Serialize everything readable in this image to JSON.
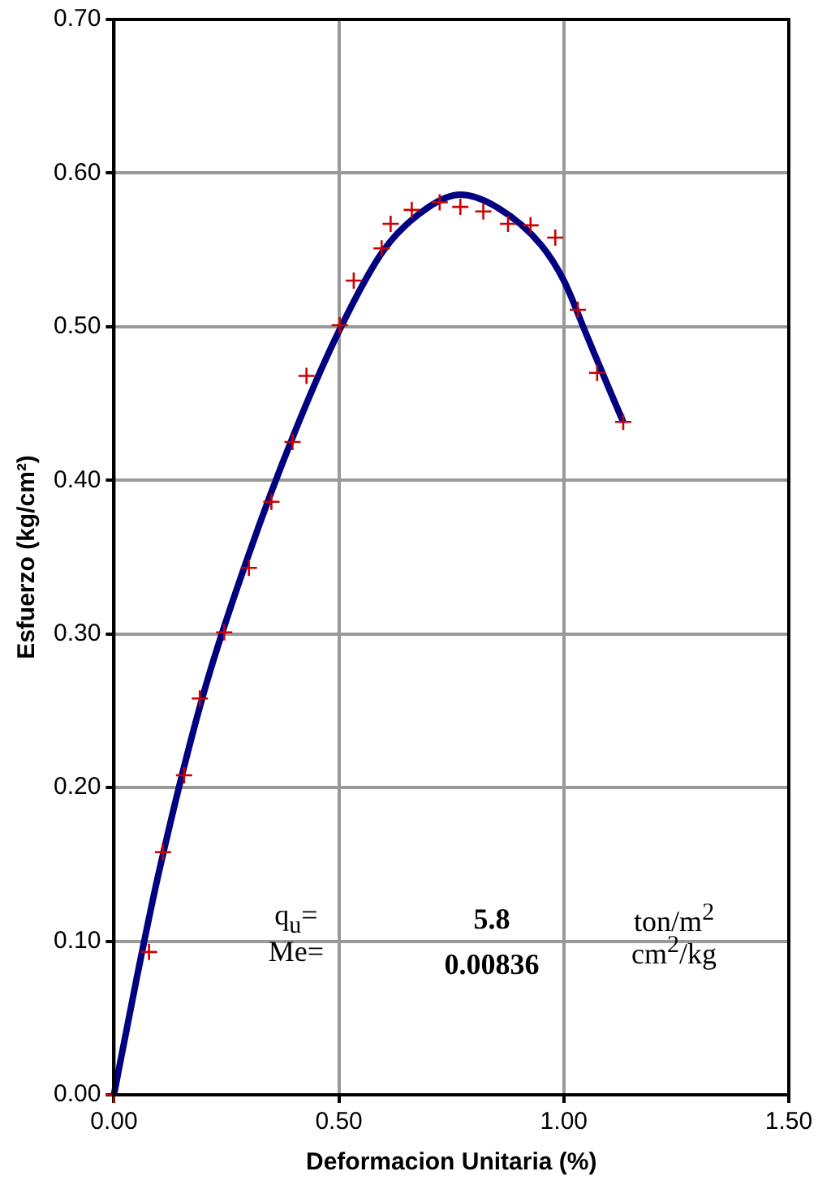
{
  "chart_data": {
    "type": "scatter",
    "xlabel": "Deformacion Unitaria (%)",
    "ylabel": "Esfuerzo (kg/cm²)",
    "xlim": [
      0,
      1.5
    ],
    "xticks": [
      {
        "value": 0,
        "label": "0.00"
      },
      {
        "value": 0.5,
        "label": "0.50"
      },
      {
        "value": 1,
        "label": "1.00"
      },
      {
        "value": 1.5,
        "label": "1.50"
      }
    ],
    "ylim": [
      0,
      0.7
    ],
    "yticks": [
      {
        "value": 0,
        "label": "0.00"
      },
      {
        "value": 0.1,
        "label": "0.10"
      },
      {
        "value": 0.2,
        "label": "0.20"
      },
      {
        "value": 0.3,
        "label": "0.30"
      },
      {
        "value": 0.4,
        "label": "0.40"
      },
      {
        "value": 0.5,
        "label": "0.50"
      },
      {
        "value": 0.6,
        "label": "0.60"
      },
      {
        "value": 0.7,
        "label": "0.70"
      }
    ],
    "grid": true,
    "legend": false,
    "series": [
      {
        "color": "#cc0000",
        "marker": "cross",
        "x": [
          0,
          0.078,
          0.109,
          0.156,
          0.191,
          0.245,
          0.3,
          0.35,
          0.397,
          0.428,
          0.502,
          0.533,
          0.595,
          0.615,
          0.662,
          0.724,
          0.77,
          0.821,
          0.876,
          0.926,
          0.981,
          1.031,
          1.074,
          1.132
        ],
        "values": [
          0,
          0.093,
          0.158,
          0.208,
          0.258,
          0.301,
          0.343,
          0.386,
          0.425,
          0.468,
          0.501,
          0.53,
          0.551,
          0.567,
          0.576,
          0.581,
          0.578,
          0.575,
          0.567,
          0.566,
          0.558,
          0.511,
          0.47,
          0.438
        ]
      },
      {
        "type": "line",
        "color": "#000080",
        "marker": "none",
        "line_style": "solid",
        "x": [
          0,
          0.05,
          0.1,
          0.2,
          0.3,
          0.4,
          0.5,
          0.6,
          0.7,
          0.77,
          0.85,
          0.95,
          1.0,
          1.05,
          1.1,
          1.132
        ],
        "values": [
          0,
          0.075,
          0.145,
          0.262,
          0.352,
          0.43,
          0.497,
          0.55,
          0.578,
          0.586,
          0.578,
          0.553,
          0.53,
          0.495,
          0.46,
          0.438
        ]
      }
    ],
    "annotations": [
      "q$_{u}$=",
      "5.8",
      "ton/m$^{2}$",
      "Me=",
      "0.00836",
      "cm$^{2}$/kg"
    ]
  }
}
